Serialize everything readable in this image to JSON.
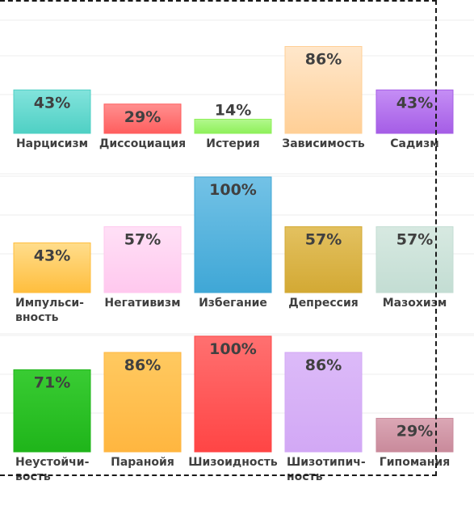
{
  "chart_data": [
    {
      "type": "bar",
      "title": "",
      "ylim": [
        0,
        100
      ],
      "grid": true,
      "bars": [
        {
          "label": "Нарцисизм",
          "value": 43,
          "display": "43%",
          "colors": [
            "#4fd0c4",
            "#82e3dc"
          ]
        },
        {
          "label": "Диссоциация",
          "value": 29,
          "display": "29%",
          "colors": [
            "#ff5e5e",
            "#ff8f8f"
          ]
        },
        {
          "label": "Истерия",
          "value": 14,
          "display": "14%",
          "colors": [
            "#8ef05a",
            "#b3f88e"
          ]
        },
        {
          "label": "Зависимость",
          "value": 86,
          "display": "86%",
          "colors": [
            "#ffcf96",
            "#ffe7cb"
          ]
        },
        {
          "label": "Садизм",
          "value": 43,
          "display": "43%",
          "colors": [
            "#a55de6",
            "#c58ef5"
          ]
        }
      ]
    },
    {
      "type": "bar",
      "title": "",
      "ylim": [
        0,
        100
      ],
      "grid": true,
      "bars": [
        {
          "label": "Импульси-вность",
          "value": 43,
          "display": "43%",
          "colors": [
            "#ffbe3d",
            "#ffdd8c"
          ]
        },
        {
          "label": "Негативизм",
          "value": 57,
          "display": "57%",
          "colors": [
            "#ffc8ee",
            "#ffe0f6"
          ]
        },
        {
          "label": "Избегание",
          "value": 100,
          "display": "100%",
          "colors": [
            "#3fa7d6",
            "#73c2e6"
          ]
        },
        {
          "label": "Депрессия",
          "value": 57,
          "display": "57%",
          "colors": [
            "#d3a934",
            "#e3c160"
          ]
        },
        {
          "label": "Мазохизм",
          "value": 57,
          "display": "57%",
          "colors": [
            "#c3ddd3",
            "#d7e9e1"
          ]
        }
      ]
    },
    {
      "type": "bar",
      "title": "",
      "ylim": [
        0,
        100
      ],
      "grid": true,
      "bars": [
        {
          "label": "Неустойчи-вость",
          "value": 71,
          "display": "71%",
          "colors": [
            "#1fb51a",
            "#39cc33"
          ]
        },
        {
          "label": "Паранойя",
          "value": 86,
          "display": "86%",
          "colors": [
            "#ffb640",
            "#ffc960"
          ]
        },
        {
          "label": "Шизоидность",
          "value": 100,
          "display": "100%",
          "colors": [
            "#ff4545",
            "#ff7070"
          ]
        },
        {
          "label": "Шизотипич-ность",
          "value": 86,
          "display": "86%",
          "colors": [
            "#d2a8f5",
            "#dcbaf8"
          ]
        },
        {
          "label": "Гипомания",
          "value": 29,
          "display": "29%",
          "colors": [
            "#c98a9b",
            "#dba7b5"
          ]
        }
      ]
    }
  ]
}
